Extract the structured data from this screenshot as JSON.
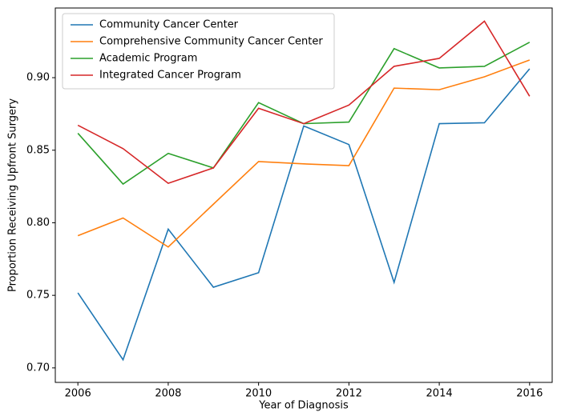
{
  "chart_data": {
    "type": "line",
    "xlabel": "Year of Diagnosis",
    "ylabel": "Proportion Receiving Upfront Surgery",
    "x": [
      2006,
      2007,
      2008,
      2009,
      2010,
      2011,
      2012,
      2013,
      2014,
      2015,
      2016
    ],
    "series": [
      {
        "name": "Community Cancer Center",
        "color": "#1f77b4",
        "values": [
          0.7517,
          0.7056,
          0.7956,
          0.7556,
          0.7656,
          0.8667,
          0.8539,
          0.7589,
          0.8683,
          0.8689,
          0.9061
        ]
      },
      {
        "name": "Comprehensive Community Cancer Center",
        "color": "#ff7f0e",
        "values": [
          0.7911,
          0.8033,
          0.7833,
          0.8128,
          0.8422,
          0.8406,
          0.8394,
          0.8928,
          0.8917,
          0.9006,
          0.9122
        ]
      },
      {
        "name": "Academic Program",
        "color": "#2ca02c",
        "values": [
          0.8617,
          0.8267,
          0.8478,
          0.8378,
          0.8828,
          0.8683,
          0.8694,
          0.92,
          0.9067,
          0.9078,
          0.9244
        ]
      },
      {
        "name": "Integrated Cancer Program",
        "color": "#d62728",
        "values": [
          0.8672,
          0.8511,
          0.8272,
          0.8378,
          0.8789,
          0.8683,
          0.8811,
          0.9078,
          0.9133,
          0.9389,
          0.8872
        ]
      }
    ],
    "xlim": [
      2005.5,
      2016.5
    ],
    "xticks": [
      2006,
      2008,
      2010,
      2012,
      2014,
      2016
    ],
    "ylim": [
      0.69,
      0.948
    ],
    "yticks": [
      {
        "value": 0.7,
        "label": "0.70"
      },
      {
        "value": 0.75,
        "label": "0.75"
      },
      {
        "value": 0.8,
        "label": "0.80"
      },
      {
        "value": 0.85,
        "label": "0.85"
      },
      {
        "value": 0.9,
        "label": "0.90"
      }
    ],
    "legend": "upper left"
  }
}
